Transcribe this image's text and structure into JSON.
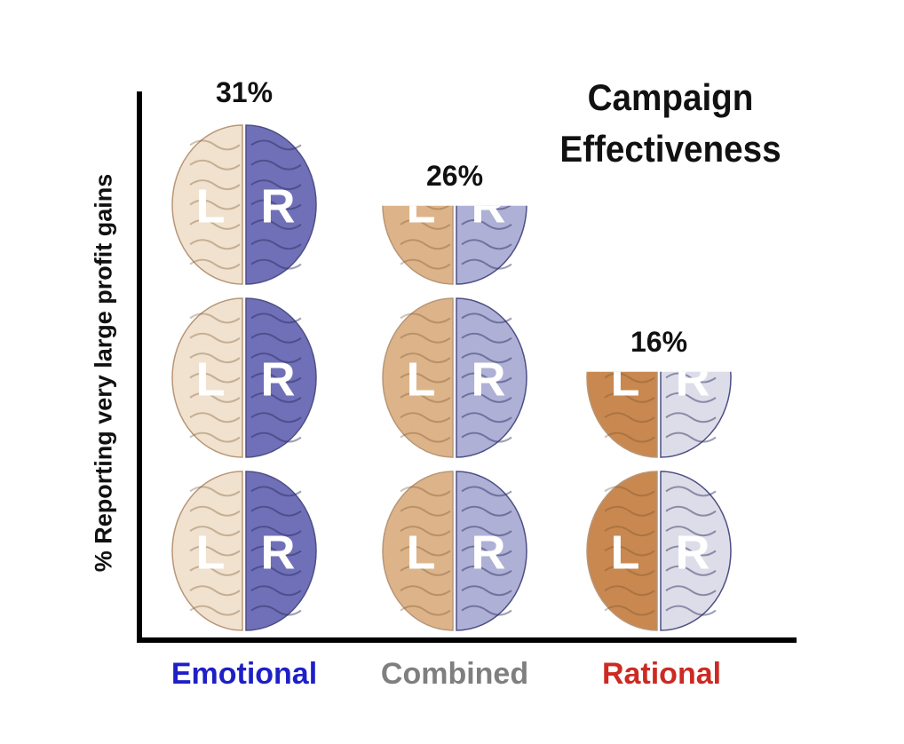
{
  "chart_data": {
    "type": "bar",
    "title_lines": [
      "Campaign",
      "Effectiveness"
    ],
    "ylabel": "% Reporting very large profit gains",
    "xlabel": "",
    "categories": [
      "Emotional",
      "Combined",
      "Rational"
    ],
    "values": [
      31,
      26,
      16
    ],
    "value_labels": [
      "31%",
      "26%",
      "16%"
    ],
    "category_colors": [
      "#1f1fc8",
      "#7f7f7f",
      "#cc2a22"
    ],
    "mark_style": "stacked brain pictograms",
    "hemisphere_labels": [
      "L",
      "R"
    ],
    "left_hemisphere_colors": [
      "#f0e2cf",
      "#ddb48a",
      "#c88850"
    ],
    "right_hemisphere_colors": [
      "#6f70b8",
      "#aeb0d6",
      "#dcdde8"
    ],
    "grid": false,
    "legend": "none"
  }
}
